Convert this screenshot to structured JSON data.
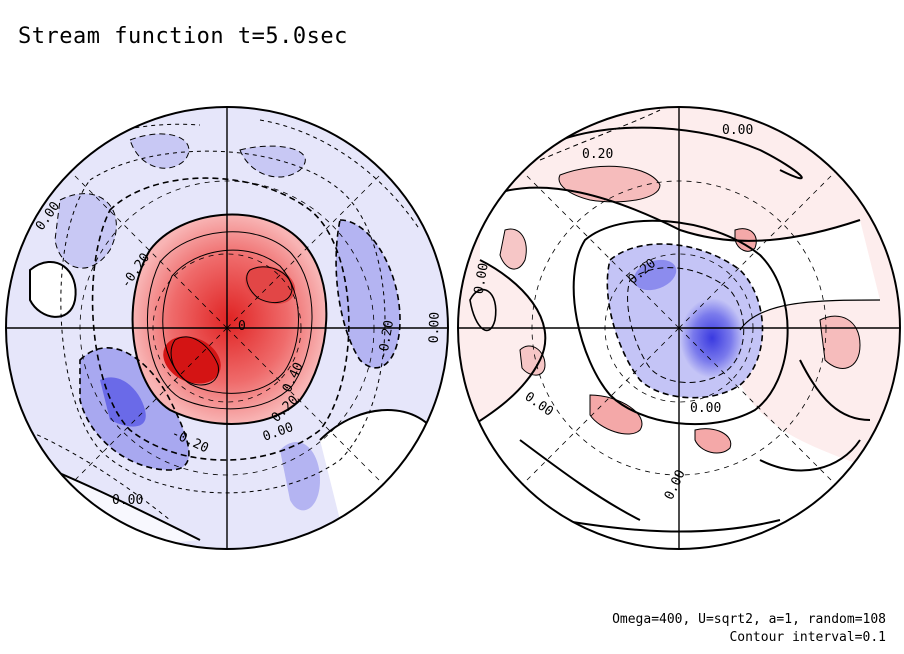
{
  "title": "Stream function t=5.0sec",
  "footer": {
    "params": "Omega=400, U=sqrt2, a=1, random=108",
    "interval": "Contour interval=0.1"
  },
  "colors": {
    "positive_strong": "#e8383a",
    "positive_mid": "#f4a0a0",
    "positive_weak": "#fde6e6",
    "negative_strong": "#4a4ae6",
    "negative_mid": "#a8a8f0",
    "negative_weak": "#e6e6fa",
    "line": "#000000"
  },
  "hemispheres": [
    {
      "id": "left",
      "contour_labels": [
        "0.00",
        "-0.20",
        "0.40",
        "0.20",
        "0.00",
        "-0.20",
        "0.00",
        "-0.20",
        "0.00",
        "0"
      ]
    },
    {
      "id": "right",
      "contour_labels": [
        "0.00",
        "0.20",
        "0.00",
        "0.20",
        "0.00",
        "0.00",
        "0.00"
      ]
    }
  ]
}
